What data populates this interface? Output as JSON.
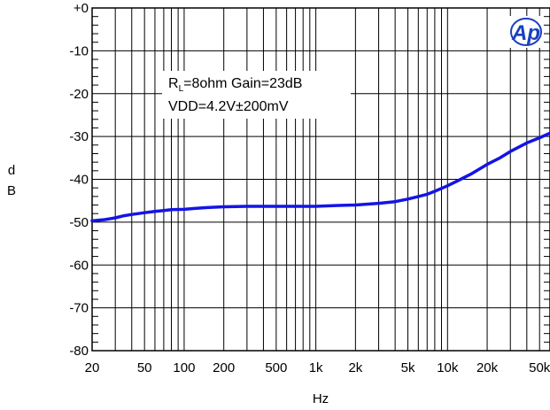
{
  "chart_data": {
    "type": "line",
    "xscale": "log",
    "xlim": [
      20,
      60000
    ],
    "ylim": [
      -80,
      0
    ],
    "grid": true,
    "xlabel": "Hz",
    "ylabel": [
      "d",
      "B"
    ],
    "x_ticks": [
      {
        "value": 20,
        "label": "20"
      },
      {
        "value": 50,
        "label": "50"
      },
      {
        "value": 100,
        "label": "100"
      },
      {
        "value": 200,
        "label": "200"
      },
      {
        "value": 500,
        "label": "500"
      },
      {
        "value": 1000,
        "label": "1k"
      },
      {
        "value": 2000,
        "label": "2k"
      },
      {
        "value": 5000,
        "label": "5k"
      },
      {
        "value": 10000,
        "label": "10k"
      },
      {
        "value": 20000,
        "label": "20k"
      },
      {
        "value": 50000,
        "label": "50k"
      }
    ],
    "y_ticks": [
      {
        "value": 0,
        "label": "+0"
      },
      {
        "value": -10,
        "label": "-10"
      },
      {
        "value": -20,
        "label": "-20"
      },
      {
        "value": -30,
        "label": "-30"
      },
      {
        "value": -40,
        "label": "-40"
      },
      {
        "value": -50,
        "label": "-50"
      },
      {
        "value": -60,
        "label": "-60"
      },
      {
        "value": -70,
        "label": "-70"
      },
      {
        "value": -80,
        "label": "-80"
      }
    ],
    "annotation": {
      "line1_main": "R",
      "line1_sub": "L",
      "line1_rest": "=8ohm Gain=23dB",
      "line2": "VDD=4.2V±200mV"
    },
    "logo": "Ap",
    "series": [
      {
        "color": "#1414e6",
        "x": [
          20,
          25,
          30,
          35,
          40,
          50,
          60,
          70,
          80,
          100,
          120,
          150,
          200,
          300,
          400,
          500,
          700,
          1000,
          1500,
          2000,
          3000,
          4000,
          5000,
          6000,
          7000,
          8000,
          10000,
          12000,
          15000,
          20000,
          25000,
          30000,
          40000,
          50000,
          60000
        ],
        "y": [
          -49.7,
          -49.4,
          -49.0,
          -48.5,
          -48.2,
          -47.8,
          -47.5,
          -47.3,
          -47.1,
          -47.0,
          -46.8,
          -46.6,
          -46.4,
          -46.3,
          -46.3,
          -46.3,
          -46.3,
          -46.3,
          -46.1,
          -46.0,
          -45.6,
          -45.2,
          -44.6,
          -44.0,
          -43.5,
          -42.8,
          -41.5,
          -40.3,
          -38.8,
          -36.5,
          -35.0,
          -33.5,
          -31.5,
          -30.3,
          -29.2
        ]
      }
    ]
  }
}
